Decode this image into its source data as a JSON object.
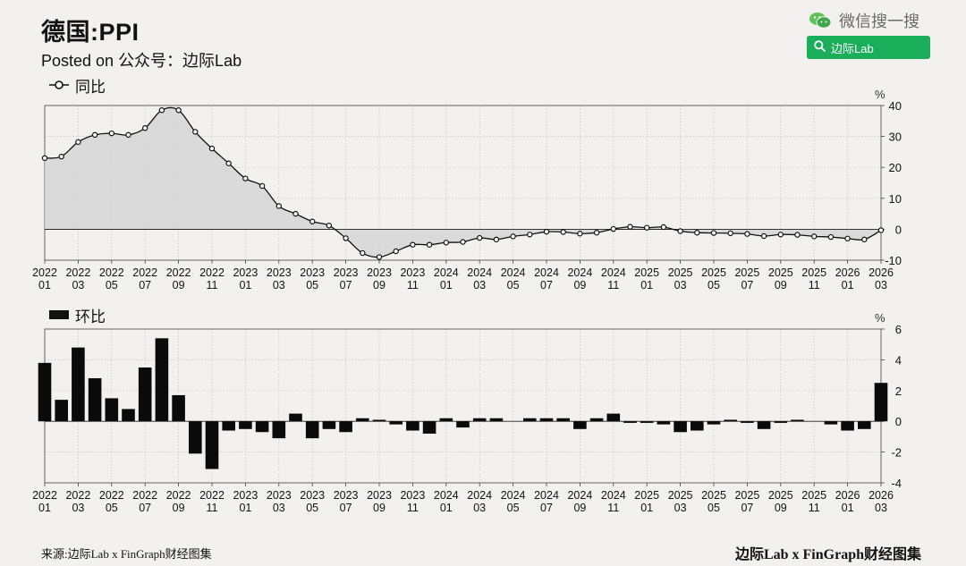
{
  "header": {
    "title": "德国:PPI",
    "subtitle": "Posted on 公众号：边际Lab"
  },
  "brand": {
    "wechat_label": "微信搜一搜",
    "search_text": "边际Lab",
    "accent": "#1aad5a"
  },
  "footer": {
    "source": "来源:边际Lab x FinGraph财经图集",
    "brand": "边际Lab x FinGraph财经图集"
  },
  "chart_data": [
    {
      "type": "line",
      "legend": "同比",
      "unit": "%",
      "ylim": [
        -10,
        40
      ],
      "yticks": [
        -10,
        0,
        10,
        20,
        30,
        40
      ],
      "area_fill": true,
      "grid": true,
      "x": [
        "2022-01",
        "2022-02",
        "2022-03",
        "2022-04",
        "2022-05",
        "2022-06",
        "2022-07",
        "2022-08",
        "2022-09",
        "2022-10",
        "2022-11",
        "2022-12",
        "2023-01",
        "2023-02",
        "2023-03",
        "2023-04",
        "2023-05",
        "2023-06",
        "2023-07",
        "2023-08",
        "2023-09",
        "2023-10",
        "2023-11",
        "2023-12",
        "2024-01",
        "2024-02",
        "2024-03",
        "2024-04",
        "2024-05",
        "2024-06",
        "2024-07",
        "2024-08",
        "2024-09",
        "2024-10",
        "2024-11",
        "2024-12",
        "2025-01",
        "2025-02",
        "2025-03",
        "2025-04",
        "2025-05",
        "2025-06",
        "2025-07",
        "2025-08",
        "2025-09",
        "2025-10",
        "2025-11",
        "2025-12",
        "2026-01",
        "2026-02",
        "2026-03"
      ],
      "values": [
        23.0,
        23.5,
        28.2,
        30.5,
        31.0,
        30.5,
        32.7,
        38.5,
        38.5,
        31.5,
        26.1,
        21.3,
        16.4,
        14.0,
        7.5,
        5.0,
        2.5,
        1.2,
        -2.9,
        -7.7,
        -9.0,
        -7.1,
        -5.0,
        -5.0,
        -4.3,
        -4.1,
        -2.8,
        -3.3,
        -2.3,
        -1.7,
        -0.8,
        -0.9,
        -1.4,
        -1.1,
        0.1,
        0.8,
        0.5,
        0.7,
        -0.6,
        -1.1,
        -1.2,
        -1.3,
        -1.5,
        -2.2,
        -1.7,
        -1.8,
        -2.3,
        -2.5,
        -3.0,
        -3.3,
        -0.3
      ],
      "tick_labels": [
        {
          "year": "2022",
          "month": "01"
        },
        {
          "year": "2022",
          "month": "03"
        },
        {
          "year": "2022",
          "month": "05"
        },
        {
          "year": "2022",
          "month": "07"
        },
        {
          "year": "2022",
          "month": "09"
        },
        {
          "year": "2022",
          "month": "11"
        },
        {
          "year": "2023",
          "month": "01"
        },
        {
          "year": "2023",
          "month": "03"
        },
        {
          "year": "2023",
          "month": "05"
        },
        {
          "year": "2023",
          "month": "07"
        },
        {
          "year": "2023",
          "month": "09"
        },
        {
          "year": "2023",
          "month": "11"
        },
        {
          "year": "2024",
          "month": "01"
        },
        {
          "year": "2024",
          "month": "03"
        },
        {
          "year": "2024",
          "month": "05"
        },
        {
          "year": "2024",
          "month": "07"
        },
        {
          "year": "2024",
          "month": "09"
        },
        {
          "year": "2024",
          "month": "11"
        },
        {
          "year": "2025",
          "month": "01"
        },
        {
          "year": "2025",
          "month": "03"
        },
        {
          "year": "2025",
          "month": "05"
        },
        {
          "year": "2025",
          "month": "07"
        },
        {
          "year": "2025",
          "month": "09"
        },
        {
          "year": "2025",
          "month": "11"
        },
        {
          "year": "2026",
          "month": "01"
        },
        {
          "year": "2026",
          "month": "03"
        }
      ]
    },
    {
      "type": "bar",
      "legend": "环比",
      "unit": "%",
      "ylim": [
        -4,
        6
      ],
      "yticks": [
        -4,
        -2,
        0,
        2,
        4,
        6
      ],
      "grid": true,
      "x": [
        "2022-01",
        "2022-02",
        "2022-03",
        "2022-04",
        "2022-05",
        "2022-06",
        "2022-07",
        "2022-08",
        "2022-09",
        "2022-10",
        "2022-11",
        "2022-12",
        "2023-01",
        "2023-02",
        "2023-03",
        "2023-04",
        "2023-05",
        "2023-06",
        "2023-07",
        "2023-08",
        "2023-09",
        "2023-10",
        "2023-11",
        "2023-12",
        "2024-01",
        "2024-02",
        "2024-03",
        "2024-04",
        "2024-05",
        "2024-06",
        "2024-07",
        "2024-08",
        "2024-09",
        "2024-10",
        "2024-11",
        "2024-12",
        "2025-01",
        "2025-02",
        "2025-03",
        "2025-04",
        "2025-05",
        "2025-06",
        "2025-07",
        "2025-08",
        "2025-09",
        "2025-10",
        "2025-11",
        "2025-12",
        "2026-01",
        "2026-02",
        "2026-03"
      ],
      "values": [
        3.8,
        1.4,
        4.8,
        2.8,
        1.5,
        0.8,
        3.5,
        5.4,
        1.7,
        -2.1,
        -3.1,
        -0.6,
        -0.5,
        -0.7,
        -1.1,
        0.5,
        -1.1,
        -0.5,
        -0.7,
        0.2,
        0.1,
        -0.2,
        -0.6,
        -0.8,
        0.2,
        -0.4,
        0.2,
        0.2,
        0.0,
        0.2,
        0.2,
        0.2,
        -0.5,
        0.2,
        0.5,
        -0.1,
        -0.1,
        -0.2,
        -0.7,
        -0.6,
        -0.2,
        0.1,
        -0.1,
        -0.5,
        -0.1,
        0.1,
        0.0,
        -0.2,
        -0.6,
        -0.5,
        2.5
      ]
    }
  ]
}
